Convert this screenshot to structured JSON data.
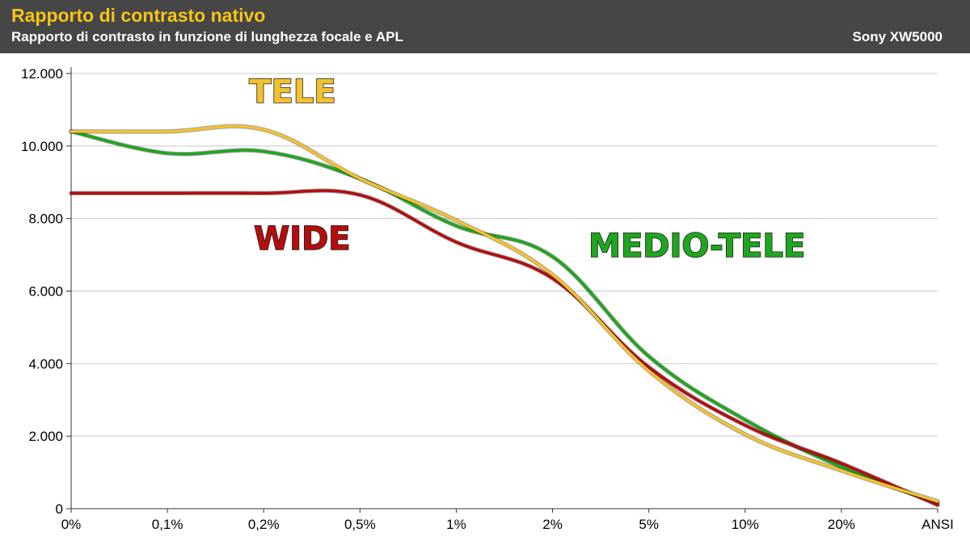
{
  "header": {
    "title": "Rapporto di contrasto nativo",
    "subtitle": "Rapporto di contrasto in funzione di lunghezza focale e APL",
    "brand": "Sony XW5000"
  },
  "colors": {
    "header_bg": "#464646",
    "title": "#f5c518",
    "tele": "#f2c12e",
    "wide": "#b20e0e",
    "medio_tele": "#1fa51f"
  },
  "chart_data": {
    "type": "line",
    "title": "Rapporto di contrasto nativo",
    "subtitle": "Rapporto di contrasto in funzione di lunghezza focale e APL",
    "categories": [
      "0%",
      "0,1%",
      "0,2%",
      "0,5%",
      "1%",
      "2%",
      "5%",
      "10%",
      "20%",
      "ANSI"
    ],
    "y_tick_labels": [
      "0",
      "2.000",
      "4.000",
      "6.000",
      "8.000",
      "10.000",
      "12.000"
    ],
    "ylim": [
      0,
      12000
    ],
    "grid": true,
    "series": [
      {
        "name": "TELE",
        "color": "#f2c12e",
        "label_color": "#f2c12e",
        "values": [
          10400,
          10400,
          10450,
          9100,
          7950,
          6450,
          3800,
          2050,
          1050,
          200
        ]
      },
      {
        "name": "WIDE",
        "color": "#b20e0e",
        "label_color": "#b20e0e",
        "values": [
          8700,
          8700,
          8700,
          8650,
          7350,
          6350,
          3900,
          2300,
          1250,
          100
        ]
      },
      {
        "name": "MEDIO-TELE",
        "color": "#1fa51f",
        "label_color": "#1fa51f",
        "values": [
          10400,
          9800,
          9850,
          9100,
          7800,
          6950,
          4200,
          2450,
          1150,
          150
        ]
      }
    ]
  }
}
